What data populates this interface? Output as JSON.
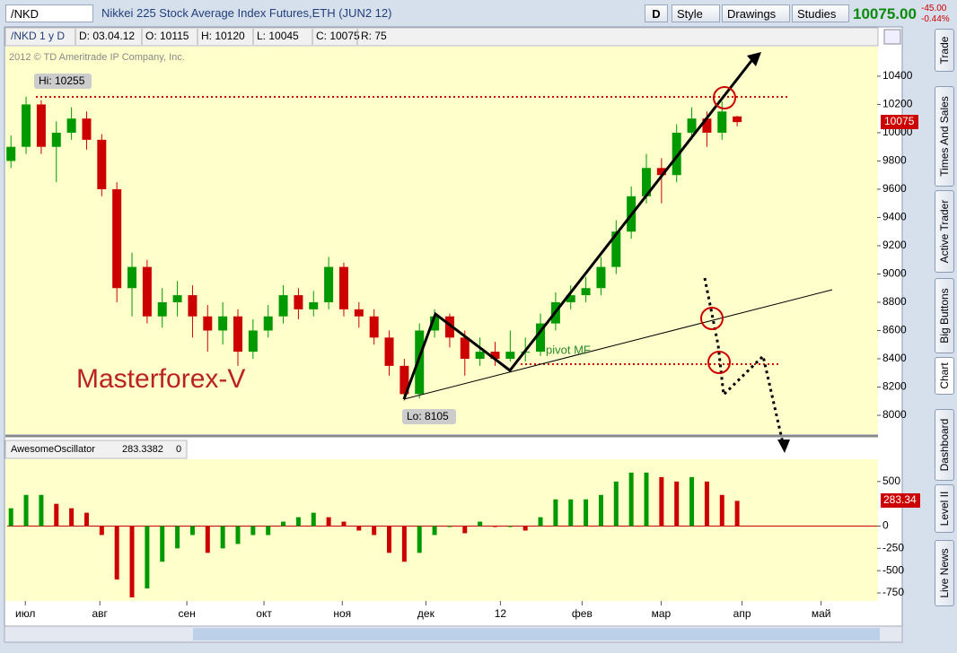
{
  "toolbar": {
    "symbol": "/NKD",
    "description": "Nikkei 225 Stock Average Index Futures,ETH (JUN2 12)",
    "period": "D",
    "style": "Style",
    "drawings": "Drawings",
    "studies": "Studies",
    "last": "10075.00",
    "change": "-45.00",
    "change_pct": "-0.44%"
  },
  "info_bar": [
    "/NKD 1 y D",
    "D: 03.04.12",
    "O: 10115",
    "H: 10120",
    "L: 10045",
    "C: 10075",
    "R: 75"
  ],
  "side_tabs": [
    "Trade",
    "Times And Sales",
    "Active Trader",
    "Big Buttons",
    "Chart",
    "Dashboard",
    "Level II",
    "Live News"
  ],
  "copyright": "2012 © TD Ameritrade IP Company, Inc.",
  "hi_label": "Hi: 10255",
  "lo_label": "Lo: 8105",
  "pivot_label": "pivot MF",
  "watermark": "Masterforex-V",
  "study_bar": [
    "AwesomeOscillator",
    "283.3382",
    "0"
  ],
  "osc_tag": "283.34",
  "chart_data": [
    {
      "type": "candlestick",
      "x": [
        1,
        5,
        9,
        13,
        17,
        21,
        25,
        29,
        33,
        37,
        41,
        45,
        49,
        53,
        57,
        61,
        65,
        69,
        73,
        77,
        81,
        85,
        89,
        93,
        97,
        101,
        105,
        109,
        113,
        117,
        121,
        125,
        129,
        133,
        137,
        141,
        145,
        149,
        153,
        157,
        161,
        165,
        169,
        173,
        177,
        181,
        185,
        189,
        193
      ],
      "open": [
        9800,
        9900,
        10200,
        9900,
        10000,
        10100,
        9950,
        9600,
        8900,
        9050,
        8700,
        8800,
        8850,
        8700,
        8600,
        8700,
        8450,
        8600,
        8700,
        8850,
        8750,
        8800,
        9050,
        8750,
        8700,
        8550,
        8350,
        8150,
        8600,
        8700,
        8550,
        8400,
        8450,
        8400,
        8450,
        8450,
        8650,
        8800,
        8850,
        8900,
        9050,
        9300,
        9550,
        9750,
        9700,
        10000,
        10100,
        10000,
        10115
      ],
      "high": [
        9980,
        10255,
        10230,
        10080,
        10180,
        10150,
        9990,
        9650,
        9150,
        9100,
        8900,
        8950,
        8920,
        8780,
        8800,
        8750,
        8680,
        8780,
        8920,
        8900,
        8880,
        9120,
        9080,
        8800,
        8750,
        8600,
        8400,
        8650,
        8750,
        8720,
        8600,
        8550,
        8520,
        8600,
        8550,
        8720,
        8870,
        8920,
        8980,
        9120,
        9380,
        9620,
        9850,
        9820,
        10060,
        10180,
        10150,
        10220,
        10120
      ],
      "low": [
        9750,
        9850,
        9850,
        9650,
        9950,
        9880,
        9550,
        8800,
        8700,
        8650,
        8620,
        8700,
        8550,
        8450,
        8500,
        8350,
        8400,
        8550,
        8650,
        8680,
        8700,
        8750,
        8700,
        8620,
        8500,
        8280,
        8105,
        8120,
        8550,
        8480,
        8280,
        8350,
        8350,
        8380,
        8380,
        8420,
        8600,
        8750,
        8800,
        8850,
        9000,
        9250,
        9500,
        9500,
        9650,
        9950,
        9900,
        9950,
        10045
      ],
      "close": [
        9900,
        10200,
        9900,
        10000,
        10100,
        9950,
        9600,
        8900,
        9050,
        8700,
        8800,
        8850,
        8700,
        8600,
        8700,
        8450,
        8600,
        8700,
        8850,
        8750,
        8800,
        9050,
        8750,
        8700,
        8550,
        8350,
        8150,
        8600,
        8700,
        8550,
        8400,
        8450,
        8400,
        8450,
        8450,
        8650,
        8800,
        8850,
        8900,
        9050,
        9300,
        9550,
        9750,
        9700,
        10000,
        10100,
        10000,
        10150,
        10075
      ],
      "up_color": "#009900",
      "down_color": "#cc0000",
      "xlim": [
        0,
        230
      ],
      "xticks": [
        {
          "value": 4.8,
          "label": "июл"
        },
        {
          "value": 24.5,
          "label": "авг"
        },
        {
          "value": 47.5,
          "label": "сен"
        },
        {
          "value": 67.9,
          "label": "окт"
        },
        {
          "value": 88.6,
          "label": "ноя"
        },
        {
          "value": 110.7,
          "label": "дек"
        },
        {
          "value": 130.4,
          "label": "12"
        },
        {
          "value": 152,
          "label": "фев"
        },
        {
          "value": 172.9,
          "label": "мар"
        },
        {
          "value": 194.3,
          "label": "апр"
        },
        {
          "value": 215.2,
          "label": "май"
        }
      ],
      "ylim": [
        7873,
        10590
      ],
      "yticks": [
        8000,
        8200,
        8400,
        8600,
        8800,
        9000,
        9200,
        9400,
        9600,
        9800,
        10000,
        10200,
        10400
      ]
    },
    {
      "type": "histogram-oscillator",
      "x": [
        1,
        5,
        9,
        13,
        17,
        21,
        25,
        29,
        33,
        37,
        41,
        45,
        49,
        53,
        57,
        61,
        65,
        69,
        73,
        77,
        81,
        85,
        89,
        93,
        97,
        101,
        105,
        109,
        113,
        117,
        121,
        125,
        129,
        133,
        137,
        141,
        145,
        149,
        153,
        157,
        161,
        165,
        169,
        173,
        177,
        181,
        185,
        189,
        193
      ],
      "values": [
        200,
        350,
        350,
        250,
        200,
        150,
        -100,
        -600,
        -800,
        -700,
        -400,
        -250,
        -100,
        -300,
        -250,
        -200,
        -100,
        -100,
        50,
        100,
        150,
        100,
        50,
        -50,
        -100,
        -300,
        -400,
        -300,
        -100,
        0,
        -80,
        50,
        0,
        0,
        -50,
        100,
        300,
        300,
        300,
        350,
        500,
        600,
        600,
        550,
        500,
        550,
        500,
        350,
        283.3382
      ],
      "up_color": "#009900",
      "down_color": "#cc0000",
      "zero_color": "#cc0000",
      "xlim": [
        0,
        230
      ],
      "ylim": [
        -820,
        740
      ],
      "yticks": [
        500,
        0,
        -250,
        -500,
        -750
      ]
    }
  ]
}
